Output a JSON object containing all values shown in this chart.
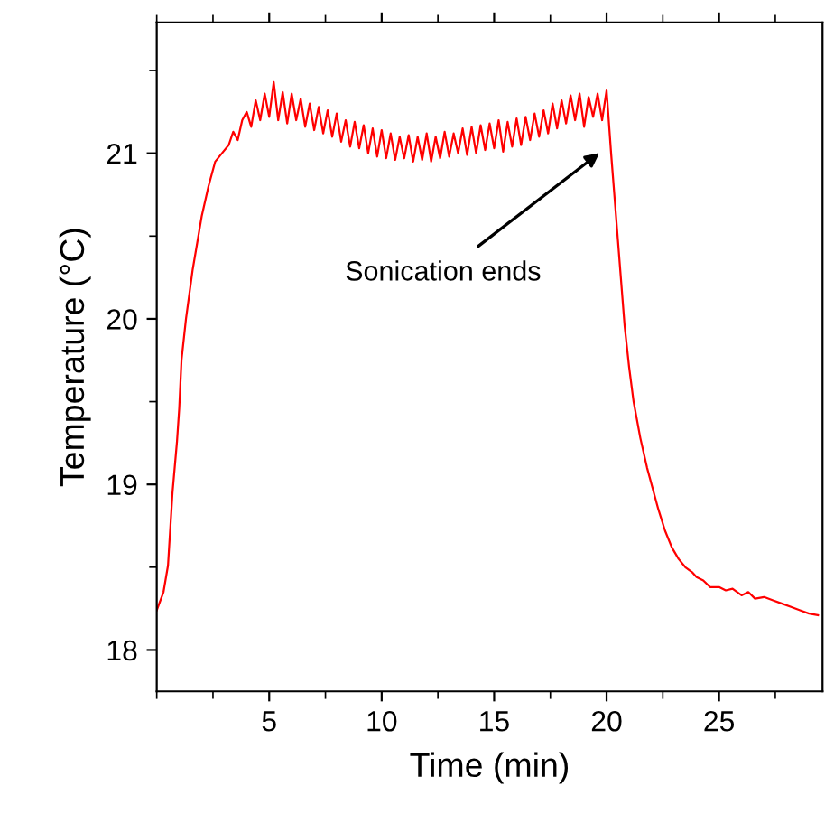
{
  "chart_data": {
    "type": "line",
    "xlabel": "Time (min)",
    "ylabel": "Temperature (°C)",
    "xlim": [
      0,
      29.6
    ],
    "ylim": [
      17.75,
      21.79
    ],
    "xticks": [
      5,
      10,
      15,
      20,
      25
    ],
    "yticks": [
      18,
      19,
      20,
      21
    ],
    "grid": false,
    "marker": "none",
    "line_style": "solid",
    "annotations": [
      "Sonication ends"
    ],
    "series": [
      {
        "color": "#ff0000",
        "x": [
          0,
          0.3,
          0.5,
          0.7,
          0.9,
          1.0,
          1.1,
          1.3,
          1.6,
          2.0,
          2.3,
          2.6,
          2.9,
          3.2,
          3.4,
          3.6,
          3.8,
          4.0,
          4.2,
          4.4,
          4.6,
          4.8,
          5.0,
          5.2,
          5.4,
          5.6,
          5.8,
          6.0,
          6.2,
          6.4,
          6.6,
          6.8,
          7.0,
          7.2,
          7.4,
          7.6,
          7.8,
          8.0,
          8.2,
          8.4,
          8.6,
          8.8,
          9.0,
          9.2,
          9.4,
          9.6,
          9.8,
          10.0,
          10.2,
          10.4,
          10.6,
          10.8,
          11.0,
          11.2,
          11.4,
          11.6,
          11.8,
          12.0,
          12.2,
          12.4,
          12.6,
          12.8,
          13.0,
          13.2,
          13.4,
          13.6,
          13.8,
          14.0,
          14.2,
          14.4,
          14.6,
          14.8,
          15.0,
          15.2,
          15.4,
          15.6,
          15.8,
          16.0,
          16.2,
          16.4,
          16.6,
          16.8,
          17.0,
          17.2,
          17.4,
          17.6,
          17.8,
          18.0,
          18.2,
          18.4,
          18.6,
          18.8,
          19.0,
          19.2,
          19.4,
          19.6,
          19.8,
          20.0,
          20.2,
          20.5,
          20.8,
          21.0,
          21.2,
          21.5,
          21.8,
          22.0,
          22.3,
          22.6,
          22.9,
          23.2,
          23.5,
          23.8,
          24.0,
          24.3,
          24.6,
          25.0,
          25.3,
          25.6,
          26.0,
          26.3,
          26.6,
          27.0,
          27.4,
          27.8,
          28.2,
          28.6,
          29.0,
          29.4
        ],
        "values": [
          18.24,
          18.35,
          18.51,
          18.95,
          19.26,
          19.46,
          19.75,
          20.0,
          20.3,
          20.62,
          20.8,
          20.95,
          21.0,
          21.05,
          21.13,
          21.08,
          21.2,
          21.25,
          21.16,
          21.32,
          21.2,
          21.36,
          21.22,
          21.43,
          21.2,
          21.37,
          21.18,
          21.36,
          21.2,
          21.33,
          21.16,
          21.3,
          21.14,
          21.28,
          21.12,
          21.26,
          21.1,
          21.24,
          21.07,
          21.2,
          21.04,
          21.19,
          21.03,
          21.17,
          21.0,
          21.15,
          20.98,
          21.14,
          20.97,
          21.12,
          20.96,
          21.1,
          20.97,
          21.11,
          20.95,
          21.1,
          20.96,
          21.12,
          20.95,
          21.1,
          20.97,
          21.13,
          20.98,
          21.12,
          21.0,
          21.15,
          20.99,
          21.16,
          21.0,
          21.17,
          21.02,
          21.18,
          21.03,
          21.2,
          21.01,
          21.19,
          21.04,
          21.21,
          21.05,
          21.22,
          21.08,
          21.24,
          21.1,
          21.26,
          21.12,
          21.3,
          21.15,
          21.32,
          21.18,
          21.35,
          21.2,
          21.36,
          21.16,
          21.34,
          21.22,
          21.36,
          21.2,
          21.38,
          21.0,
          20.48,
          19.96,
          19.71,
          19.5,
          19.28,
          19.1,
          19.0,
          18.85,
          18.72,
          18.62,
          18.55,
          18.5,
          18.47,
          18.44,
          18.42,
          18.38,
          18.38,
          18.36,
          18.37,
          18.33,
          18.35,
          18.31,
          18.32,
          18.3,
          18.28,
          18.26,
          18.24,
          18.22,
          18.21
        ]
      }
    ]
  }
}
